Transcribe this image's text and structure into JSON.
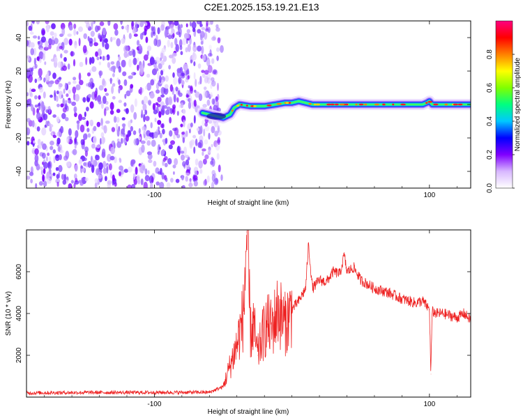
{
  "title": "C2E1.2025.153.19.21.E13",
  "chart_data": [
    {
      "type": "heatmap",
      "xlabel": "Height of straight line (km)",
      "ylabel": "Frequency (Hz)",
      "xlim": [
        -193,
        130
      ],
      "ylim": [
        -50,
        50
      ],
      "xticks": [
        -100,
        100
      ],
      "yticks": [
        -40,
        -20,
        0,
        20,
        40
      ],
      "ridge": {
        "x": [
          -65,
          -55,
          -50,
          -45,
          -42,
          -38,
          -30,
          -20,
          -12,
          -5,
          0,
          5,
          10,
          15,
          20,
          30,
          50,
          80,
          95,
          98,
          100,
          102,
          110,
          130
        ],
        "y": [
          -5,
          -7,
          -8,
          -6,
          -2,
          0,
          -1,
          -1,
          0,
          1,
          1,
          2,
          1,
          0,
          0,
          0,
          0,
          0,
          0,
          1,
          2,
          0,
          0,
          0
        ]
      },
      "noise_region_x": [
        -193,
        -55
      ],
      "colorbar": {
        "label": "Normalized spectral amplitude",
        "ticks": [
          0.0,
          0.2,
          0.4,
          0.6,
          0.8
        ],
        "range": [
          0,
          1
        ],
        "colors": [
          "#ffffff",
          "#d8b8ff",
          "#8000ff",
          "#0000ff",
          "#00c8ff",
          "#00ff80",
          "#80ff00",
          "#ffff00",
          "#ff8000",
          "#ff0000",
          "#ff0080"
        ]
      }
    },
    {
      "type": "line",
      "xlabel": "Height of straight line (km)",
      "ylabel": "SNR (10 * v/v)",
      "xlim": [
        -193,
        130
      ],
      "ylim": [
        0,
        8000
      ],
      "xticks": [
        -100,
        100
      ],
      "yticks": [
        2000,
        4000,
        6000
      ],
      "color": "#ee2222",
      "x": [
        -193,
        -150,
        -100,
        -60,
        -50,
        -45,
        -40,
        -35,
        -33,
        -30,
        -28,
        -25,
        -22,
        -20,
        -18,
        -15,
        -12,
        -10,
        -5,
        0,
        5,
        10,
        12,
        15,
        20,
        25,
        30,
        35,
        38,
        40,
        45,
        50,
        60,
        70,
        80,
        90,
        95,
        100,
        101,
        102,
        105,
        110,
        115,
        120,
        125,
        130
      ],
      "y": [
        200,
        220,
        220,
        230,
        500,
        1500,
        2500,
        4000,
        7900,
        3000,
        3500,
        2000,
        2800,
        3200,
        3500,
        3300,
        3800,
        4200,
        3500,
        4200,
        4600,
        5200,
        7300,
        5200,
        5600,
        5500,
        6000,
        5900,
        6800,
        6000,
        6200,
        5600,
        5200,
        5000,
        4700,
        4500,
        4600,
        4200,
        1100,
        4100,
        4000,
        4000,
        3900,
        3800,
        4000,
        3700
      ]
    }
  ]
}
